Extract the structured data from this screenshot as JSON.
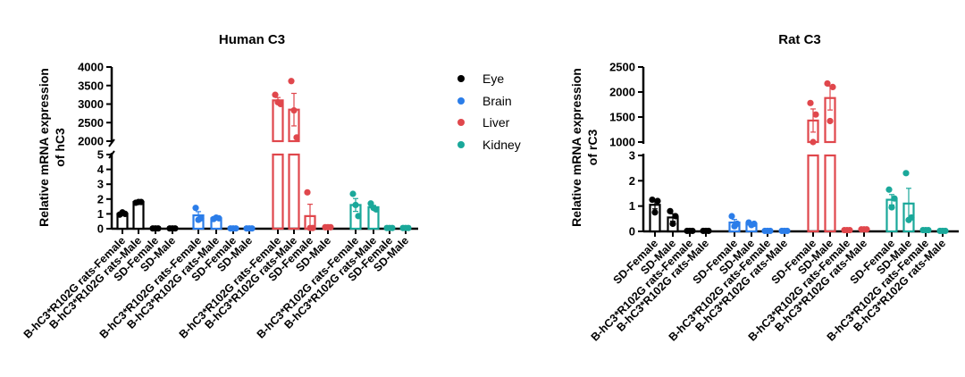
{
  "legend": [
    {
      "label": "Eye",
      "color": "#000000"
    },
    {
      "label": "Brain",
      "color": "#2b7de9"
    },
    {
      "label": "Liver",
      "color": "#e0474c"
    },
    {
      "label": "Kidney",
      "color": "#1aa89a"
    }
  ],
  "chart_data": [
    {
      "type": "bar",
      "title": "Human C3",
      "ylabel": [
        "Relative mRNA expression",
        "of hC3"
      ],
      "y_axis_broken": true,
      "ylim_lower": [
        0,
        5
      ],
      "ylim_upper": [
        2000,
        4000
      ],
      "yticks_lower": [
        "0",
        "1",
        "2",
        "3",
        "4",
        "5"
      ],
      "yticks_upper": [
        "2000",
        "2500",
        "3000",
        "3500",
        "4000"
      ],
      "error_bars": "SEM",
      "categories": [
        "B-hC3*R102G rats-Female",
        "B-hC3*R102G rats-Male",
        "SD-Female",
        "SD-Male",
        "B-hC3*R102G rats-Female",
        "B-hC3*R102G rats-Male",
        "SD-Female",
        "SD-Male",
        "B-hC3*R102G rats-Female",
        "B-hC3*R102G rats-Male",
        "SD-Female",
        "SD-Male",
        "B-hC3*R102G rats-Female",
        "B-hC3*R102G rats-Male",
        "SD-Female",
        "SD-Male"
      ],
      "groups": [
        "Eye",
        "Eye",
        "Eye",
        "Eye",
        "Brain",
        "Brain",
        "Brain",
        "Brain",
        "Liver",
        "Liver",
        "Liver",
        "Liver",
        "Kidney",
        "Kidney",
        "Kidney",
        "Kidney"
      ],
      "values": [
        1.0,
        1.8,
        0.02,
        0.02,
        0.9,
        0.7,
        0.02,
        0.02,
        3100,
        2850,
        0.85,
        0.1,
        1.6,
        1.45,
        0.05,
        0.05
      ],
      "points": [
        [
          0.95,
          1.0,
          1.1
        ],
        [
          1.75,
          1.8,
          1.8
        ],
        [
          0.02,
          0.02,
          0.02
        ],
        [
          0.02,
          0.02,
          0.02
        ],
        [
          1.4,
          0.7,
          0.6
        ],
        [
          0.65,
          0.7,
          0.75
        ],
        [
          0.02,
          0.02,
          0.02
        ],
        [
          0.02,
          0.02,
          0.02
        ],
        [
          3250,
          3000,
          3050
        ],
        [
          3620,
          2100,
          2830
        ],
        [
          2.45,
          0.05,
          0.05
        ],
        [
          0.1,
          0.1,
          0.1
        ],
        [
          2.35,
          0.85,
          1.6
        ],
        [
          1.7,
          1.3,
          1.4
        ],
        [
          0.05,
          0.05,
          0.05
        ],
        [
          0.05,
          0.05,
          0.05
        ]
      ]
    },
    {
      "type": "bar",
      "title": "Rat C3",
      "ylabel": [
        "Relative mRNA expression",
        "of rC3"
      ],
      "y_axis_broken": true,
      "ylim_lower": [
        0,
        3
      ],
      "ylim_upper": [
        1000,
        2500
      ],
      "yticks_lower": [
        "0",
        "1",
        "2",
        "3"
      ],
      "yticks_upper": [
        "1000",
        "1500",
        "2000",
        "2500"
      ],
      "error_bars": "SEM",
      "categories": [
        "SD-Female",
        "SD-Male",
        "B-hC3*R102G rats-Female",
        "B-hC3*R102G rats-Male",
        "SD-Female",
        "SD-Male",
        "B-hC3*R102G rats-Female",
        "B-hC3*R102G rats-Male",
        "SD-Female",
        "SD-Male",
        "B-hC3*R102G rats-Female",
        "B-hC3*R102G rats-Male",
        "SD-Female",
        "SD-Male",
        "B-hC3*R102G rats-Female",
        "B-hC3*R102G rats-Male"
      ],
      "groups": [
        "Eye",
        "Eye",
        "Eye",
        "Eye",
        "Brain",
        "Brain",
        "Brain",
        "Brain",
        "Liver",
        "Liver",
        "Liver",
        "Liver",
        "Kidney",
        "Kidney",
        "Kidney",
        "Kidney"
      ],
      "values": [
        1.05,
        0.55,
        0.02,
        0.02,
        0.35,
        0.3,
        0.02,
        0.02,
        1430,
        1880,
        0.05,
        0.08,
        1.25,
        1.1,
        0.05,
        0.02
      ],
      "points": [
        [
          1.25,
          1.2,
          0.75
        ],
        [
          0.8,
          0.6,
          0.3
        ],
        [
          0.02,
          0.02,
          0.02
        ],
        [
          0.02,
          0.02,
          0.02
        ],
        [
          0.6,
          0.3,
          0.2
        ],
        [
          0.35,
          0.3,
          0.25
        ],
        [
          0.02,
          0.02,
          0.02
        ],
        [
          0.02,
          0.02,
          0.02
        ],
        [
          1780,
          1550,
          1000
        ],
        [
          2170,
          2100,
          1420
        ],
        [
          0.05,
          0.05,
          0.05
        ],
        [
          0.08,
          0.08,
          0.08
        ],
        [
          1.65,
          1.3,
          0.95
        ],
        [
          2.3,
          0.55,
          0.45
        ],
        [
          0.05,
          0.05,
          0.05
        ],
        [
          0.02,
          0.02,
          0.02
        ]
      ]
    }
  ]
}
